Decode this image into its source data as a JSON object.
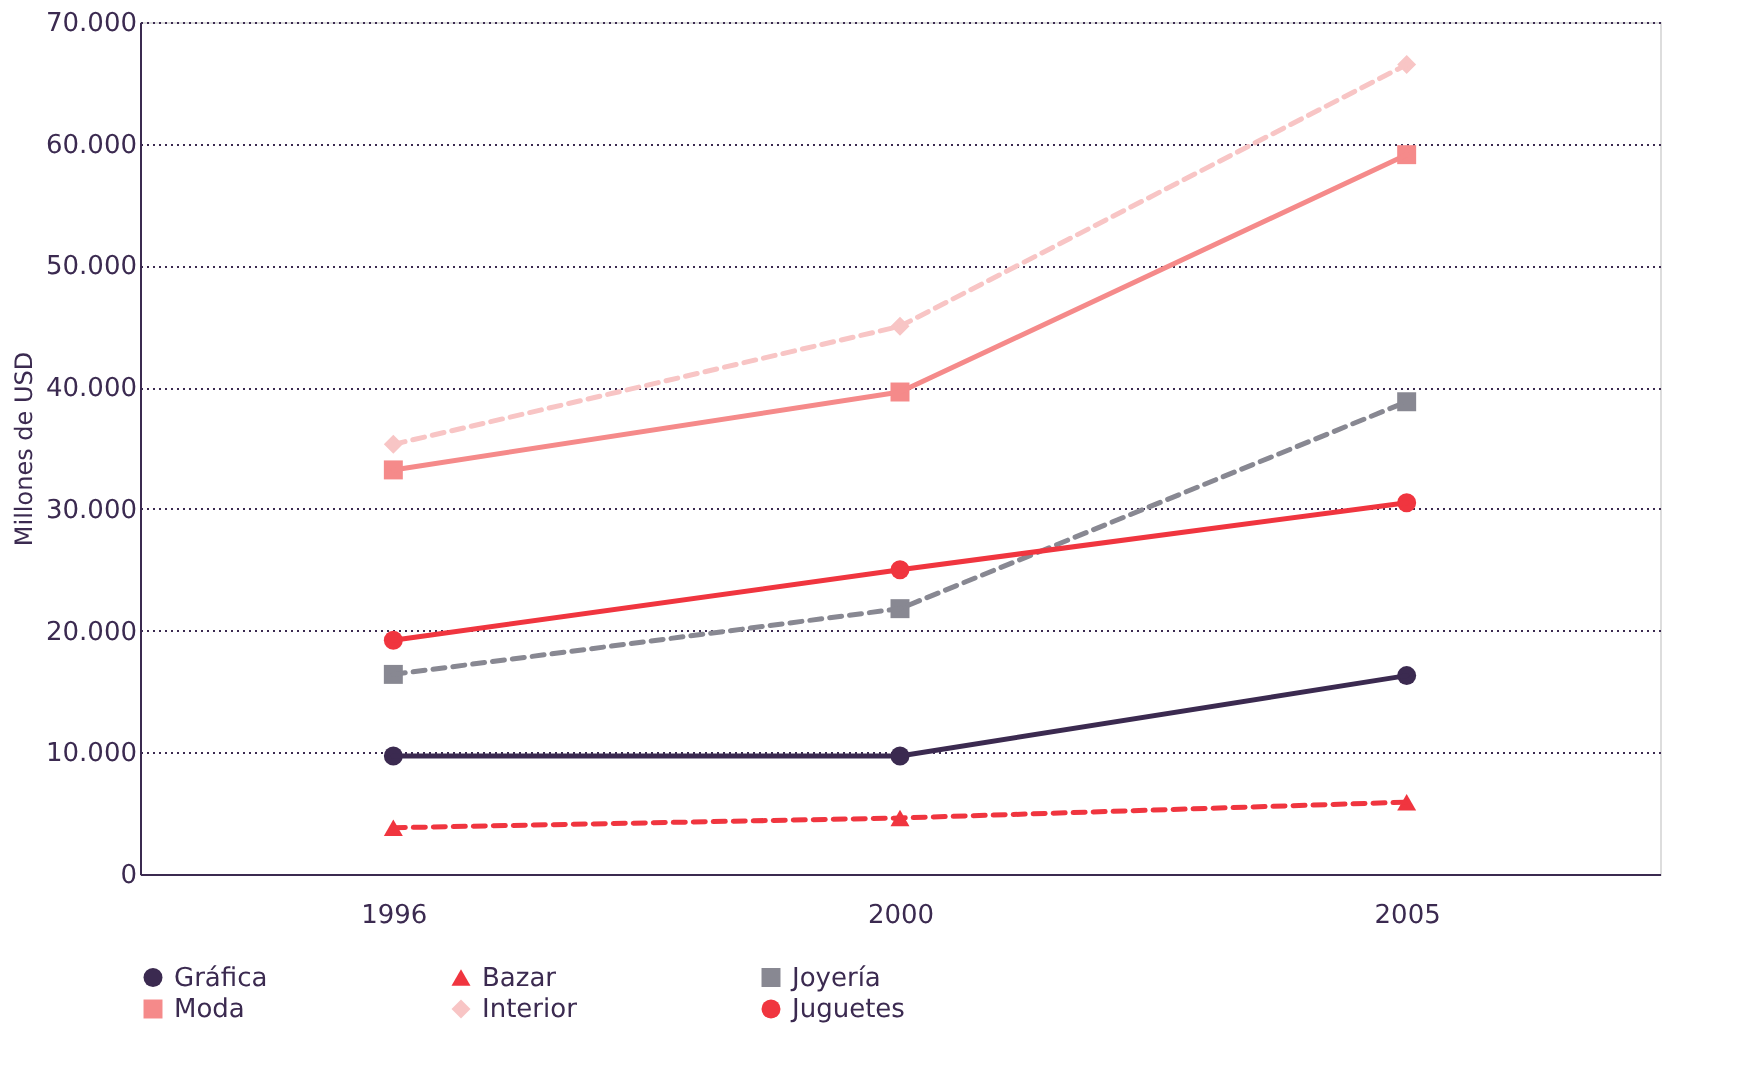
{
  "chart_data": {
    "type": "line",
    "ylabel": "Millones de USD",
    "categories": [
      "1996",
      "2000",
      "2005"
    ],
    "ylim": [
      0,
      70000
    ],
    "yticks": [
      0,
      {
        "value": 10000,
        "label": "10.000"
      },
      {
        "value": 20000,
        "label": "20.000"
      },
      {
        "value": 30000,
        "label": "30.000"
      },
      {
        "value": 40000,
        "label": "40.000"
      },
      {
        "value": 50000,
        "label": "50.000"
      },
      {
        "value": 60000,
        "label": "60.000"
      },
      {
        "value": 70000,
        "label": "70.000"
      }
    ],
    "grid": "y",
    "legend": "bottom",
    "series": [
      {
        "name": "Gráfica",
        "color": "#3b2a50",
        "marker": "circle",
        "line_style": "solid",
        "values": [
          9700,
          9700,
          16300
        ]
      },
      {
        "name": "Bazar",
        "color": "#f0353f",
        "marker": "triangle",
        "line_style": "dashed",
        "values": [
          3800,
          4600,
          5900
        ]
      },
      {
        "name": "Joyería",
        "color": "#888892",
        "marker": "square",
        "line_style": "dashed",
        "values": [
          16400,
          21800,
          38800
        ]
      },
      {
        "name": "Moda",
        "color": "#f58a8a",
        "marker": "square",
        "line_style": "solid",
        "values": [
          33200,
          39600,
          59100
        ]
      },
      {
        "name": "Interior",
        "color": "#f8c5c5",
        "marker": "diamond",
        "line_style": "dashed",
        "values": [
          35300,
          45000,
          66500
        ]
      },
      {
        "name": "Juguetes",
        "color": "#f0353f",
        "marker": "circle",
        "line_style": "solid",
        "values": [
          19200,
          25000,
          30500
        ]
      }
    ]
  }
}
